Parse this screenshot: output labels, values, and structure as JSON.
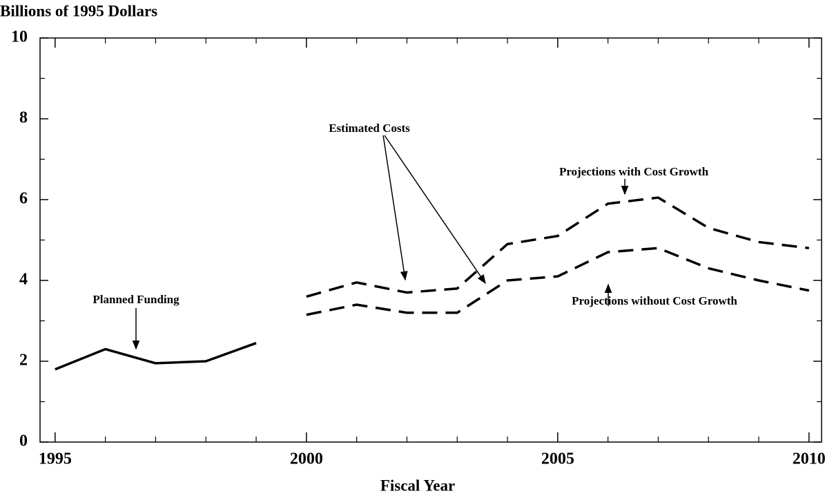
{
  "chart_data": {
    "type": "line",
    "y_label": "Billions of 1995 Dollars",
    "x_label": "Fiscal Year",
    "x": [
      1995,
      1996,
      1997,
      1998,
      1999,
      2000,
      2001,
      2002,
      2003,
      2004,
      2005,
      2006,
      2007,
      2008,
      2009,
      2010
    ],
    "series": [
      {
        "name": "Planned Funding",
        "color": "#000000",
        "style": "solid",
        "values": [
          1.8,
          2.3,
          1.95,
          2.0,
          2.45,
          null,
          null,
          null,
          null,
          null,
          null,
          null,
          null,
          null,
          null,
          null
        ]
      },
      {
        "name": "Projections with Cost Growth",
        "color": "#000000",
        "style": "dashed",
        "values": [
          null,
          null,
          null,
          null,
          null,
          3.6,
          3.95,
          3.7,
          3.8,
          4.9,
          5.1,
          5.9,
          6.05,
          5.3,
          4.95,
          4.8
        ]
      },
      {
        "name": "Projections without Cost Growth",
        "color": "#000000",
        "style": "dashed",
        "values": [
          null,
          null,
          null,
          null,
          null,
          3.15,
          3.4,
          3.2,
          3.2,
          4.0,
          4.1,
          4.7,
          4.8,
          4.3,
          4.0,
          3.75
        ]
      }
    ],
    "annotations": [
      "Estimated Costs"
    ],
    "xlim": [
      1994.7,
      2010.25
    ],
    "ylim": [
      0,
      10
    ],
    "xticks": [
      1995,
      2000,
      2005,
      2010
    ],
    "xticks_minor": [
      1996,
      1997,
      1998,
      1999,
      2001,
      2002,
      2003,
      2004,
      2006,
      2007,
      2008,
      2009
    ],
    "yticks": [
      0,
      2,
      4,
      6,
      8,
      10
    ],
    "yticks_minor": [
      1,
      3,
      5,
      7,
      9
    ],
    "grid": false
  }
}
